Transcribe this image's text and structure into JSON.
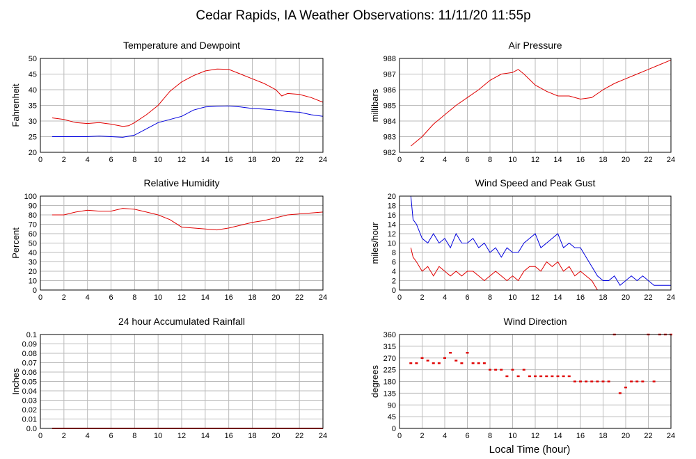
{
  "page_title": "Cedar Rapids, IA Weather Observations: 11/11/20 11:55p",
  "x_axis_label": "Local Time (hour)",
  "x_ticks": [
    0,
    2,
    4,
    6,
    8,
    10,
    12,
    14,
    16,
    18,
    20,
    22,
    24
  ],
  "colors": {
    "red": "#e00000",
    "blue": "#0000dd",
    "grid": "#bbbbbb",
    "frame": "#000000"
  },
  "chart_data": [
    {
      "type": "line",
      "title": "Temperature and Dewpoint",
      "ylabel": "Fahrenheit",
      "xlim": [
        0,
        24
      ],
      "ylim": [
        20,
        50
      ],
      "y_ticks": [
        "20",
        "25",
        "30",
        "35",
        "40",
        "45",
        "50"
      ],
      "grid": true,
      "series": [
        {
          "color": "#e00000",
          "x": [
            1,
            2,
            3,
            4,
            5,
            6,
            7,
            7.5,
            8,
            9,
            10,
            11,
            12,
            13,
            14,
            15,
            16,
            17,
            18,
            19,
            20,
            20.5,
            21,
            22,
            23,
            24
          ],
          "values": [
            31,
            30.5,
            29.5,
            29.2,
            29.5,
            29,
            28.3,
            28.5,
            29.5,
            32,
            35,
            39.5,
            42.5,
            44.5,
            46,
            46.6,
            46.5,
            45,
            43.5,
            42,
            40,
            38,
            38.8,
            38.5,
            37.5,
            36
          ]
        },
        {
          "color": "#0000dd",
          "x": [
            1,
            2,
            3,
            4,
            5,
            6,
            7,
            8,
            9,
            10,
            11,
            12,
            13,
            14,
            15,
            16,
            17,
            18,
            19,
            20,
            21,
            22,
            23,
            24
          ],
          "values": [
            25,
            25,
            25,
            25,
            25.2,
            25,
            24.8,
            25.5,
            27.5,
            29.5,
            30.5,
            31.5,
            33.5,
            34.5,
            34.7,
            34.8,
            34.5,
            34,
            33.8,
            33.5,
            33,
            32.8,
            32,
            31.5
          ]
        }
      ]
    },
    {
      "type": "line",
      "title": "Air Pressure",
      "ylabel": "millibars",
      "xlim": [
        0,
        24
      ],
      "ylim": [
        982,
        988
      ],
      "y_ticks": [
        "982",
        "983",
        "984",
        "985",
        "986",
        "987",
        "988"
      ],
      "grid": true,
      "series": [
        {
          "color": "#e00000",
          "x": [
            1,
            2,
            3,
            4,
            5,
            6,
            7,
            8,
            9,
            10,
            10.5,
            11,
            12,
            13,
            14,
            15,
            16,
            17,
            18,
            19,
            20,
            21,
            22,
            23,
            24
          ],
          "values": [
            982.4,
            983,
            983.8,
            984.4,
            985,
            985.5,
            986,
            986.6,
            987,
            987.1,
            987.3,
            987,
            986.3,
            985.9,
            985.6,
            985.6,
            985.4,
            985.5,
            986,
            986.4,
            986.7,
            987,
            987.3,
            987.6,
            987.9
          ]
        }
      ]
    },
    {
      "type": "line",
      "title": "Relative Humidity",
      "ylabel": "Percent",
      "xlim": [
        0,
        24
      ],
      "ylim": [
        0,
        100
      ],
      "y_ticks": [
        "0",
        "10",
        "20",
        "30",
        "40",
        "50",
        "60",
        "70",
        "80",
        "90",
        "100"
      ],
      "grid": true,
      "series": [
        {
          "color": "#e00000",
          "x": [
            1,
            2,
            3,
            4,
            5,
            6,
            7,
            8,
            9,
            10,
            11,
            12,
            13,
            14,
            15,
            16,
            17,
            18,
            19,
            20,
            21,
            22,
            23,
            24
          ],
          "values": [
            80,
            80,
            83,
            85,
            84,
            84,
            87,
            86,
            83,
            80,
            75,
            67,
            66,
            65,
            64,
            66,
            69,
            72,
            74,
            77,
            80,
            81,
            82,
            83
          ]
        }
      ]
    },
    {
      "type": "line",
      "title": "Wind Speed and Peak Gust",
      "ylabel": "miles/hour",
      "xlim": [
        0,
        24
      ],
      "ylim": [
        0,
        20
      ],
      "y_ticks": [
        "0",
        "2",
        "4",
        "6",
        "8",
        "10",
        "12",
        "14",
        "16",
        "18",
        "20"
      ],
      "grid": true,
      "series": [
        {
          "color": "#0000dd",
          "x": [
            1,
            1.2,
            1.5,
            2,
            2.5,
            3,
            3.5,
            4,
            4.5,
            5,
            5.5,
            6,
            6.5,
            7,
            7.5,
            8,
            8.5,
            9,
            9.5,
            10,
            10.5,
            11,
            11.5,
            12,
            12.5,
            13,
            13.5,
            14,
            14.5,
            15,
            15.5,
            16,
            16.5,
            17,
            17.5,
            18,
            18.5,
            19,
            19.5,
            20,
            20.5,
            21,
            21.5,
            22,
            22.5,
            23,
            23.5,
            24
          ],
          "values": [
            20,
            15,
            14,
            11,
            10,
            12,
            10,
            11,
            9,
            12,
            10,
            10,
            11,
            9,
            10,
            8,
            9,
            7,
            9,
            8,
            8,
            10,
            11,
            12,
            9,
            10,
            11,
            12,
            9,
            10,
            9,
            9,
            7,
            5,
            3,
            2,
            2,
            3,
            1,
            2,
            3,
            2,
            3,
            2,
            1,
            1,
            1,
            1
          ]
        },
        {
          "color": "#e00000",
          "x": [
            1,
            1.2,
            1.5,
            2,
            2.5,
            3,
            3.5,
            4,
            4.5,
            5,
            5.5,
            6,
            6.5,
            7,
            7.5,
            8,
            8.5,
            9,
            9.5,
            10,
            10.5,
            11,
            11.5,
            12,
            12.5,
            13,
            13.5,
            14,
            14.5,
            15,
            15.5,
            16,
            16.5,
            17,
            17.5,
            18,
            18.5,
            19,
            19.5,
            20,
            20.5,
            21,
            21.5,
            22,
            22.5,
            23,
            23.5,
            24
          ],
          "values": [
            9,
            7,
            6,
            4,
            5,
            3,
            5,
            4,
            3,
            4,
            3,
            4,
            4,
            3,
            2,
            3,
            4,
            3,
            2,
            3,
            2,
            4,
            5,
            5,
            4,
            6,
            5,
            6,
            4,
            5,
            3,
            4,
            3,
            2,
            0,
            0,
            0,
            0,
            0,
            0,
            0,
            0,
            0,
            0,
            0,
            0,
            0,
            0
          ]
        }
      ]
    },
    {
      "type": "line",
      "title": "24 hour Accumulated Rainfall",
      "ylabel": "Inches",
      "xlim": [
        0,
        24
      ],
      "ylim": [
        0,
        0.1
      ],
      "y_ticks": [
        "0.0",
        "0.01",
        "0.02",
        "0.03",
        "0.04",
        "0.05",
        "0.06",
        "0.07",
        "0.08",
        "0.09",
        "0.1"
      ],
      "grid": true,
      "series": [
        {
          "color": "#e00000",
          "x": [
            1,
            24
          ],
          "values": [
            0,
            0
          ]
        }
      ]
    },
    {
      "type": "scatter",
      "title": "Wind Direction",
      "ylabel": "degrees",
      "xlim": [
        0,
        24
      ],
      "ylim": [
        0,
        360
      ],
      "y_ticks": [
        "0",
        "45",
        "90",
        "135",
        "180",
        "225",
        "270",
        "315",
        "360"
      ],
      "grid": true,
      "series": [
        {
          "color": "#e00000",
          "x": [
            1,
            1.5,
            2,
            2.5,
            3,
            3.5,
            4,
            4.5,
            5,
            5.5,
            6,
            6.5,
            7,
            7.5,
            8,
            8.5,
            9,
            9.5,
            10,
            10.5,
            11,
            11.5,
            12,
            12.5,
            13,
            13.5,
            14,
            14.5,
            15,
            15.5,
            16,
            16.5,
            17,
            17.5,
            18,
            18.5,
            19,
            19.5,
            20,
            20.5,
            21,
            21.5,
            22,
            22.5,
            23,
            23.5,
            24
          ],
          "values": [
            250,
            250,
            270,
            260,
            250,
            250,
            270,
            290,
            260,
            250,
            290,
            250,
            250,
            250,
            225,
            225,
            225,
            200,
            225,
            200,
            225,
            200,
            200,
            200,
            200,
            200,
            200,
            200,
            200,
            180,
            180,
            180,
            180,
            180,
            180,
            180,
            360,
            135,
            157,
            180,
            180,
            180,
            360,
            180,
            360,
            360,
            360
          ]
        }
      ]
    }
  ]
}
